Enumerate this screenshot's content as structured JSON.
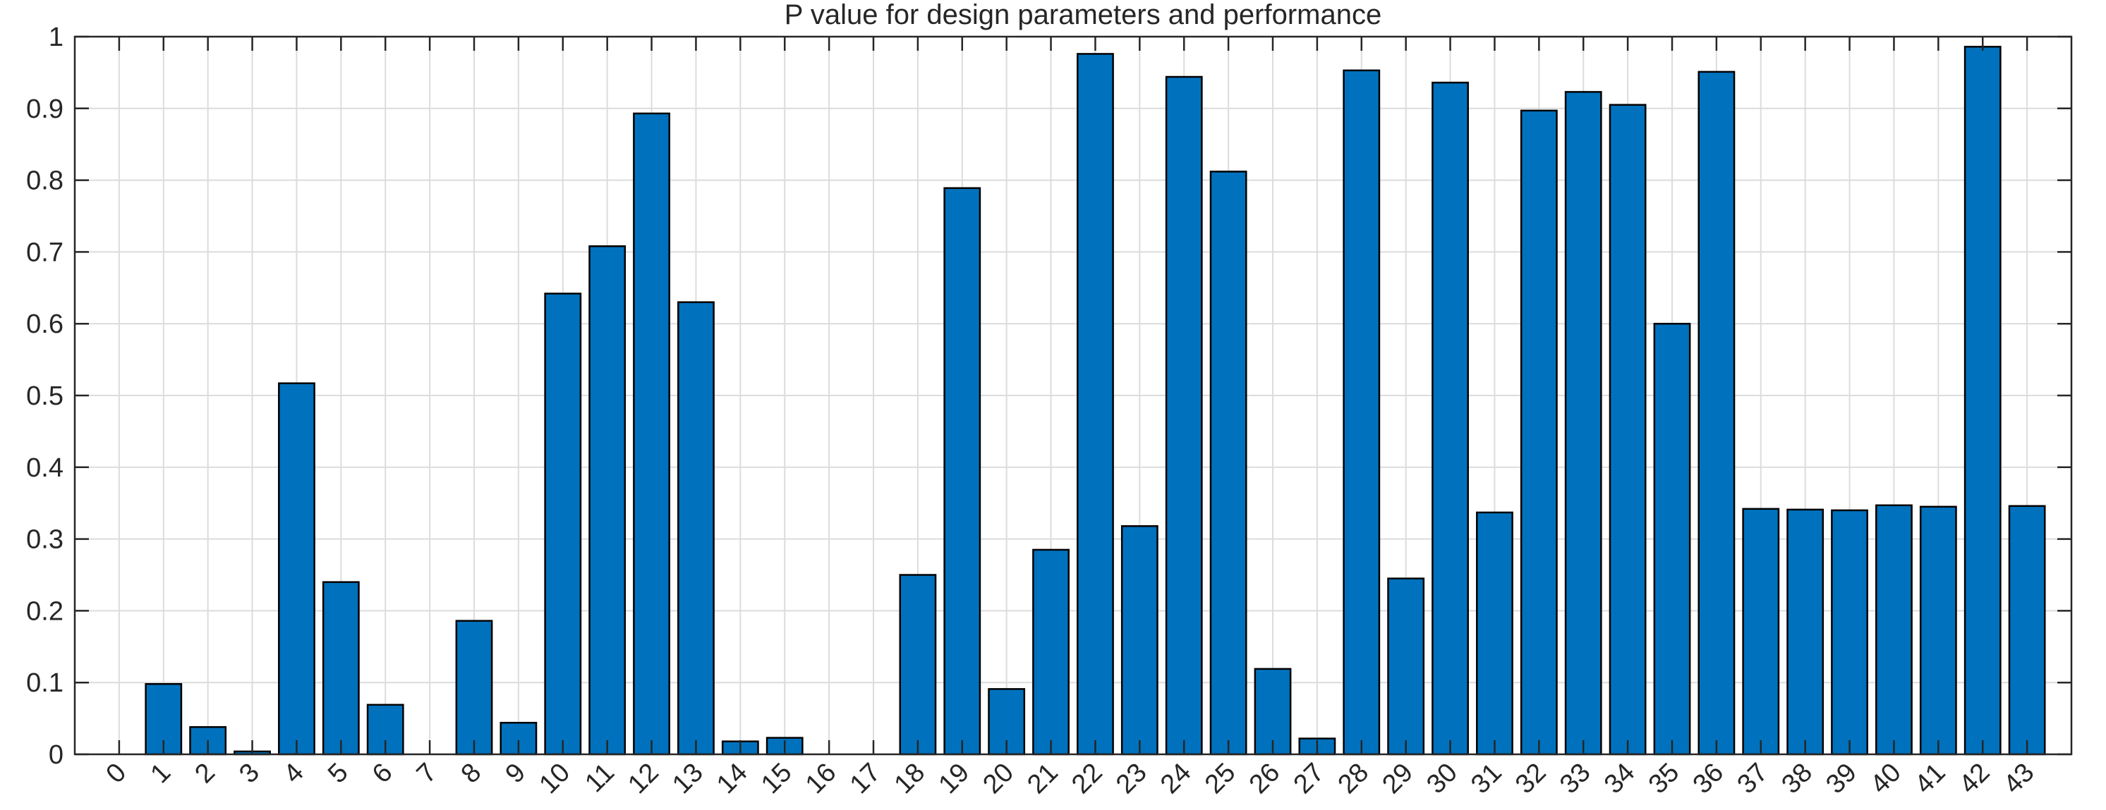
{
  "chart_data": {
    "type": "bar",
    "title": "P value for design parameters and performance",
    "xlabel": "",
    "ylabel": "",
    "categories": [
      "0",
      "1",
      "2",
      "3",
      "4",
      "5",
      "6",
      "7",
      "8",
      "9",
      "10",
      "11",
      "12",
      "13",
      "14",
      "15",
      "16",
      "17",
      "18",
      "19",
      "20",
      "21",
      "22",
      "23",
      "24",
      "25",
      "26",
      "27",
      "28",
      "29",
      "30",
      "31",
      "32",
      "33",
      "34",
      "35",
      "36",
      "37",
      "38",
      "39",
      "40",
      "41",
      "42",
      "43"
    ],
    "values": [
      0.0,
      0.098,
      0.038,
      0.004,
      0.517,
      0.24,
      0.069,
      0.0,
      0.186,
      0.044,
      0.642,
      0.708,
      0.893,
      0.63,
      0.018,
      0.023,
      0.0,
      0.0,
      0.25,
      0.789,
      0.091,
      0.285,
      0.976,
      0.318,
      0.944,
      0.812,
      0.119,
      0.022,
      0.953,
      0.245,
      0.936,
      0.337,
      0.897,
      0.923,
      0.905,
      0.6,
      0.951,
      0.342,
      0.341,
      0.34,
      0.347,
      0.345,
      0.986,
      0.346
    ],
    "ylim": [
      0,
      1
    ],
    "yticks": [
      0,
      0.1,
      0.2,
      0.3,
      0.4,
      0.5,
      0.6,
      0.7,
      0.8,
      0.9,
      1
    ],
    "ytick_labels": [
      "0",
      "0.1",
      "0.2",
      "0.3",
      "0.4",
      "0.5",
      "0.6",
      "0.7",
      "0.8",
      "0.9",
      "1"
    ],
    "grid": true,
    "bar_color": "#0072BD",
    "bar_edge_color": "#000000"
  }
}
